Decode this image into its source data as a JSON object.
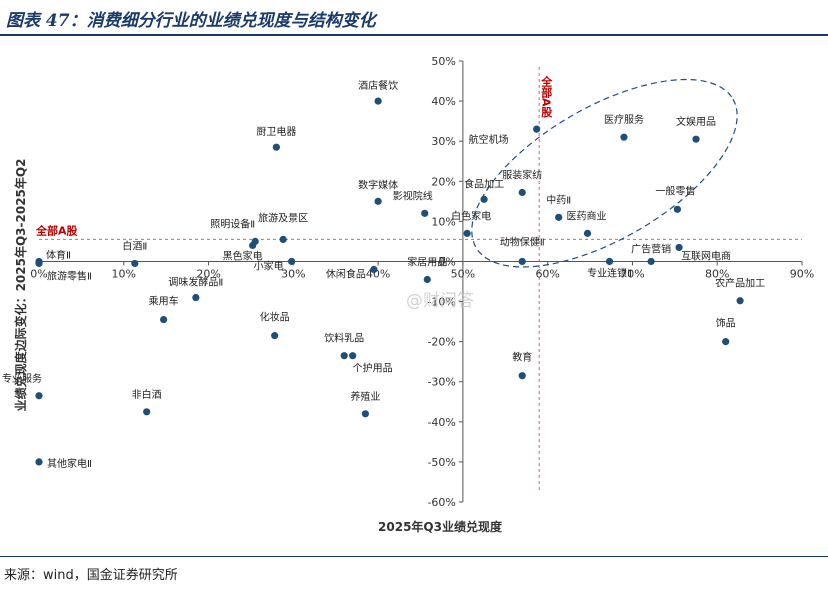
{
  "title": "图表 47：消费细分行业的业绩兑现度与结构变化",
  "source": "来源：wind，国金证券研究所",
  "watermark": "@财问答",
  "colors": {
    "point": "#1f4e79",
    "reference": "#e06060",
    "refText": "#c00000",
    "ellipse": "#1f4e79",
    "axis": "#555555"
  },
  "chart_data": {
    "type": "scatter",
    "title": "",
    "xlabel": "2025年Q3业绩兑现度",
    "ylabel": "业绩兑现度边际变化：2025年Q3-2025年Q2",
    "xlim": [
      0,
      0.9
    ],
    "ylim": [
      -0.6,
      0.5
    ],
    "xticks": [
      0,
      0.1,
      0.2,
      0.3,
      0.4,
      0.5,
      0.6,
      0.7,
      0.8,
      0.9
    ],
    "yticks": [
      -0.6,
      -0.5,
      -0.4,
      -0.3,
      -0.2,
      -0.1,
      0,
      0.1,
      0.2,
      0.3,
      0.4,
      0.5
    ],
    "xticklabels": [
      "0%",
      "10%",
      "20%",
      "30%",
      "40%",
      "50%",
      "60%",
      "70%",
      "80%",
      "90%"
    ],
    "yticklabels": [
      "-60%",
      "-50%",
      "-40%",
      "-30%",
      "-20%",
      "-10%",
      "0%",
      "10%",
      "20%",
      "30%",
      "40%",
      "50%"
    ],
    "reference_lines": {
      "x": 0.59,
      "y": 0.055,
      "label": "全部A股"
    },
    "highlight_ellipse": {
      "cx": 0.667,
      "cy": 0.22,
      "rx": 0.175,
      "ry": 0.165,
      "rotation_deg": -30
    },
    "points": [
      {
        "label": "酒店餐饮",
        "x": 0.4,
        "y": 0.4,
        "anchor": "middle",
        "dx": 0,
        "dy": -12
      },
      {
        "label": "厨卫电器",
        "x": 0.28,
        "y": 0.285,
        "anchor": "middle",
        "dx": 0,
        "dy": -12
      },
      {
        "label": "航空机场",
        "x": 0.587,
        "y": 0.33,
        "anchor": "end",
        "dx": -28,
        "dy": 14
      },
      {
        "label": "医疗服务",
        "x": 0.69,
        "y": 0.31,
        "anchor": "middle",
        "dx": 0,
        "dy": -14
      },
      {
        "label": "文娱用品",
        "x": 0.775,
        "y": 0.305,
        "anchor": "middle",
        "dx": 0,
        "dy": -14
      },
      {
        "label": "数字媒体",
        "x": 0.4,
        "y": 0.15,
        "anchor": "middle",
        "dx": 0,
        "dy": -13
      },
      {
        "label": "食品加工",
        "x": 0.525,
        "y": 0.155,
        "anchor": "middle",
        "dx": 0,
        "dy": -12
      },
      {
        "label": "服装家纺",
        "x": 0.57,
        "y": 0.172,
        "anchor": "middle",
        "dx": 0,
        "dy": -14
      },
      {
        "label": "影视院线",
        "x": 0.455,
        "y": 0.12,
        "anchor": "end",
        "dx": 8,
        "dy": -14
      },
      {
        "label": "中药Ⅱ",
        "x": 0.613,
        "y": 0.11,
        "anchor": "middle",
        "dx": 0,
        "dy": -14
      },
      {
        "label": "医药商业",
        "x": 0.647,
        "y": 0.07,
        "anchor": "start",
        "dx": -21,
        "dy": -14
      },
      {
        "label": "一般零售",
        "x": 0.753,
        "y": 0.13,
        "anchor": "start",
        "dx": -22,
        "dy": -15
      },
      {
        "label": "白色家电",
        "x": 0.505,
        "y": 0.07,
        "anchor": "end",
        "dx": 24,
        "dy": -14
      },
      {
        "label": "动物保健Ⅱ",
        "x": 0.57,
        "y": 0.0,
        "anchor": "middle",
        "dx": 0,
        "dy": -16
      },
      {
        "label": "广告营销",
        "x": 0.722,
        "y": 0.0,
        "anchor": "middle",
        "dx": 0,
        "dy": -9
      },
      {
        "label": "互联网电商",
        "x": 0.755,
        "y": 0.035,
        "anchor": "start",
        "dx": 2,
        "dy": 12
      },
      {
        "label": "专业连锁Ⅱ",
        "x": 0.673,
        "y": 0.0,
        "anchor": "middle",
        "dx": 0,
        "dy": 15
      },
      {
        "label": "照明设备Ⅱ",
        "x": 0.255,
        "y": 0.05,
        "anchor": "end",
        "dx": 0,
        "dy": -14
      },
      {
        "label": "黑色家电",
        "x": 0.252,
        "y": 0.04,
        "anchor": "end",
        "dx": 10,
        "dy": 14
      },
      {
        "label": "旅游及景区",
        "x": 0.288,
        "y": 0.055,
        "anchor": "middle",
        "dx": 0,
        "dy": -18
      },
      {
        "label": "小家电",
        "x": 0.298,
        "y": 0.0,
        "anchor": "end",
        "dx": -8,
        "dy": 8
      },
      {
        "label": "白酒Ⅱ",
        "x": 0.113,
        "y": -0.005,
        "anchor": "middle",
        "dx": 0,
        "dy": -14
      },
      {
        "label": "体育Ⅱ",
        "x": 0.0,
        "y": 0.0,
        "anchor": "start",
        "dx": 7,
        "dy": -3
      },
      {
        "label": "休闲食品",
        "x": 0.395,
        "y": -0.02,
        "anchor": "end",
        "dx": -8,
        "dy": 8
      },
      {
        "label": "家居用品",
        "x": 0.458,
        "y": -0.045,
        "anchor": "middle",
        "dx": 0,
        "dy": -14
      },
      {
        "label": "旅游零售Ⅱ",
        "x": 0.0,
        "y": -0.005,
        "anchor": "start",
        "dx": 8,
        "dy": 16
      },
      {
        "label": "调味发酵品Ⅱ",
        "x": 0.185,
        "y": -0.09,
        "anchor": "middle",
        "dx": 0,
        "dy": -12
      },
      {
        "label": "乘用车",
        "x": 0.147,
        "y": -0.145,
        "anchor": "middle",
        "dx": 0,
        "dy": -15
      },
      {
        "label": "农产品加工",
        "x": 0.827,
        "y": -0.098,
        "anchor": "middle",
        "dx": 0,
        "dy": -14
      },
      {
        "label": "化妆品",
        "x": 0.278,
        "y": -0.185,
        "anchor": "middle",
        "dx": 0,
        "dy": -15
      },
      {
        "label": "饰品",
        "x": 0.81,
        "y": -0.2,
        "anchor": "middle",
        "dx": 0,
        "dy": -15
      },
      {
        "label": "饮料乳品",
        "x": 0.36,
        "y": -0.235,
        "anchor": "middle",
        "dx": 0,
        "dy": -14
      },
      {
        "label": "个护用品",
        "x": 0.37,
        "y": -0.235,
        "anchor": "start",
        "dx": 0,
        "dy": 16
      },
      {
        "label": "教育",
        "x": 0.57,
        "y": -0.285,
        "anchor": "middle",
        "dx": 0,
        "dy": -15
      },
      {
        "label": "专业服务",
        "x": 0.0,
        "y": -0.335,
        "anchor": "end",
        "dx": 3,
        "dy": -14
      },
      {
        "label": "非白酒",
        "x": 0.127,
        "y": -0.375,
        "anchor": "middle",
        "dx": 0,
        "dy": -14
      },
      {
        "label": "养殖业",
        "x": 0.385,
        "y": -0.38,
        "anchor": "middle",
        "dx": 0,
        "dy": -14
      },
      {
        "label": "其他家电Ⅱ",
        "x": 0.0,
        "y": -0.5,
        "anchor": "start",
        "dx": 8,
        "dy": 5
      }
    ]
  }
}
